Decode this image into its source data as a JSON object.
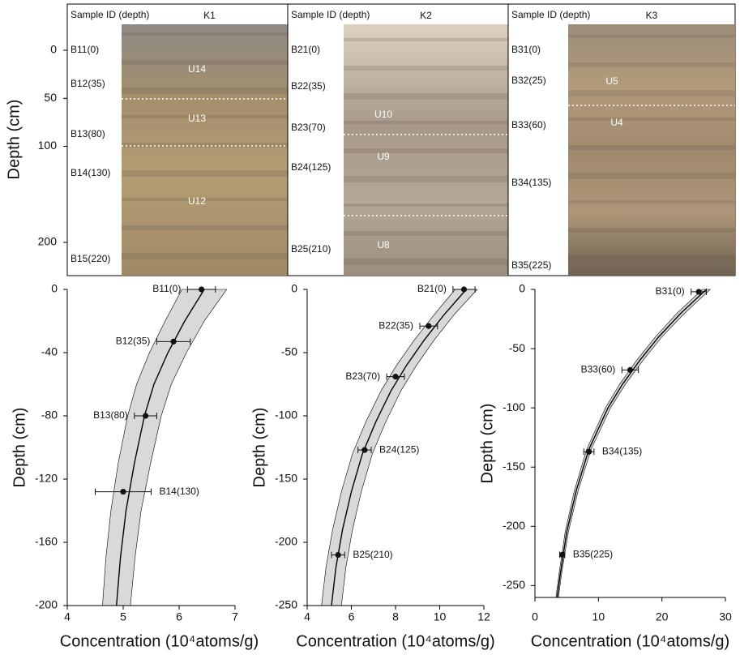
{
  "photo_panels": {
    "header": "Sample ID (depth)",
    "ylabel": "Depth (cm)",
    "ylim": [
      -48,
      234
    ],
    "yticks": [
      0,
      50,
      100,
      200
    ],
    "panels": [
      {
        "site": "K1",
        "samples": [
          "B11(0)",
          "B12(35)",
          "B13(80)",
          "B14(130)",
          "B15(220)"
        ],
        "units": [
          "U14",
          "U13",
          "U12"
        ]
      },
      {
        "site": "K2",
        "samples": [
          "B21(0)",
          "B22(35)",
          "B23(70)",
          "B24(125)",
          "B25(210)"
        ],
        "units": [
          "U10",
          "U9",
          "U8"
        ]
      },
      {
        "site": "K3",
        "samples": [
          "B31(0)",
          "B32(25)",
          "B33(60)",
          "B34(135)",
          "B35(225)"
        ],
        "units": [
          "U5",
          "U4"
        ]
      }
    ]
  },
  "chart_data": [
    {
      "type": "scatter",
      "xlabel": "Concentration (10⁴atoms/g)",
      "ylabel": "Depth (cm)",
      "xlim": [
        4,
        7
      ],
      "xticks": [
        4,
        5,
        6,
        7
      ],
      "ylim": [
        -200,
        0
      ],
      "yticks": [
        0,
        -40,
        -80,
        -120,
        -160,
        -200
      ],
      "points": {
        "labels": [
          "B11(0)",
          "B12(35)",
          "B13(80)",
          "B14(130)"
        ],
        "x": [
          6.4,
          5.9,
          5.4,
          5.0
        ],
        "y": [
          0,
          -33,
          -80,
          -128
        ],
        "xerr": [
          0.25,
          0.3,
          0.2,
          0.5
        ],
        "color": "#111111"
      },
      "curve": {
        "x": [
          6.45,
          6.1,
          5.8,
          5.55,
          5.38,
          5.2,
          5.05,
          4.95,
          4.88
        ],
        "y": [
          0,
          -20,
          -40,
          -60,
          -80,
          -110,
          -140,
          -170,
          -200
        ],
        "color": "#000000"
      },
      "band": {
        "y": [
          0,
          -20,
          -40,
          -60,
          -80,
          -110,
          -140,
          -170,
          -200
        ],
        "x_low": [
          6.05,
          5.75,
          5.47,
          5.24,
          5.08,
          4.91,
          4.78,
          4.69,
          4.63
        ],
        "x_high": [
          6.85,
          6.45,
          6.13,
          5.86,
          5.68,
          5.49,
          5.32,
          5.21,
          5.13
        ],
        "color": "#d9d9d9"
      }
    },
    {
      "type": "scatter",
      "xlabel": "Concentration (10⁴atoms/g)",
      "ylabel": "Depth (cm)",
      "xlim": [
        4,
        12
      ],
      "xticks": [
        4,
        6,
        8,
        10,
        12
      ],
      "ylim": [
        -250,
        0
      ],
      "yticks": [
        0,
        -50,
        -100,
        -150,
        -200,
        -250
      ],
      "points": {
        "labels": [
          "B21(0)",
          "B22(35)",
          "B23(70)",
          "B24(125)",
          "B25(210)"
        ],
        "x": [
          11.1,
          9.5,
          8.0,
          6.6,
          5.4
        ],
        "y": [
          0,
          -29,
          -69,
          -127,
          -210
        ],
        "xerr": [
          0.5,
          0.4,
          0.4,
          0.3,
          0.3
        ],
        "color": "#111111"
      },
      "curve": {
        "x": [
          11.2,
          10.2,
          9.3,
          8.5,
          7.8,
          7.1,
          6.5,
          6.0,
          5.6,
          5.3,
          5.1
        ],
        "y": [
          0,
          -20,
          -40,
          -60,
          -80,
          -105,
          -130,
          -160,
          -190,
          -220,
          -250
        ],
        "color": "#000000"
      },
      "band": {
        "y": [
          0,
          -20,
          -40,
          -60,
          -80,
          -105,
          -130,
          -160,
          -190,
          -220,
          -250
        ],
        "x_low": [
          10.7,
          9.75,
          8.85,
          8.05,
          7.35,
          6.65,
          6.05,
          5.55,
          5.15,
          4.85,
          4.65
        ],
        "x_high": [
          11.7,
          10.65,
          9.75,
          8.95,
          8.25,
          7.55,
          6.95,
          6.45,
          6.05,
          5.75,
          5.55
        ],
        "color": "#d9d9d9"
      }
    },
    {
      "type": "scatter",
      "xlabel": "Concentration (10⁴atoms/g)",
      "ylabel": "Depth (cm)",
      "xlim": [
        0,
        30
      ],
      "xticks": [
        0,
        10,
        20,
        30
      ],
      "ylim": [
        -260,
        0
      ],
      "yticks": [
        0,
        -50,
        -100,
        -150,
        -200,
        -250
      ],
      "points": {
        "labels": [
          "B31(0)",
          "B33(60)",
          "B34(135)",
          "B35(225)"
        ],
        "x": [
          25.8,
          15.0,
          8.5,
          4.3
        ],
        "y": [
          -2,
          -68,
          -137,
          -224
        ],
        "xerr": [
          1.2,
          1.3,
          0.8,
          0.4
        ],
        "color": "#111111"
      },
      "curve": {
        "x": [
          27,
          23,
          19.5,
          16.5,
          13.8,
          11.5,
          8.5,
          6.5,
          5,
          4,
          3.5
        ],
        "y": [
          0,
          -20,
          -40,
          -60,
          -80,
          -100,
          -135,
          -170,
          -205,
          -240,
          -260
        ],
        "color": "#000000"
      },
      "band": {
        "y": [
          0,
          -20,
          -40,
          -60,
          -80,
          -100,
          -135,
          -170,
          -205,
          -240,
          -260
        ],
        "x_low": [
          26.4,
          22.4,
          19.0,
          16.0,
          13.35,
          11.1,
          8.15,
          6.2,
          4.75,
          3.8,
          3.3
        ],
        "x_high": [
          27.6,
          23.6,
          20.0,
          17.0,
          14.25,
          11.9,
          8.85,
          6.8,
          5.25,
          4.2,
          3.7
        ],
        "color": "#d9d9d9"
      }
    }
  ]
}
